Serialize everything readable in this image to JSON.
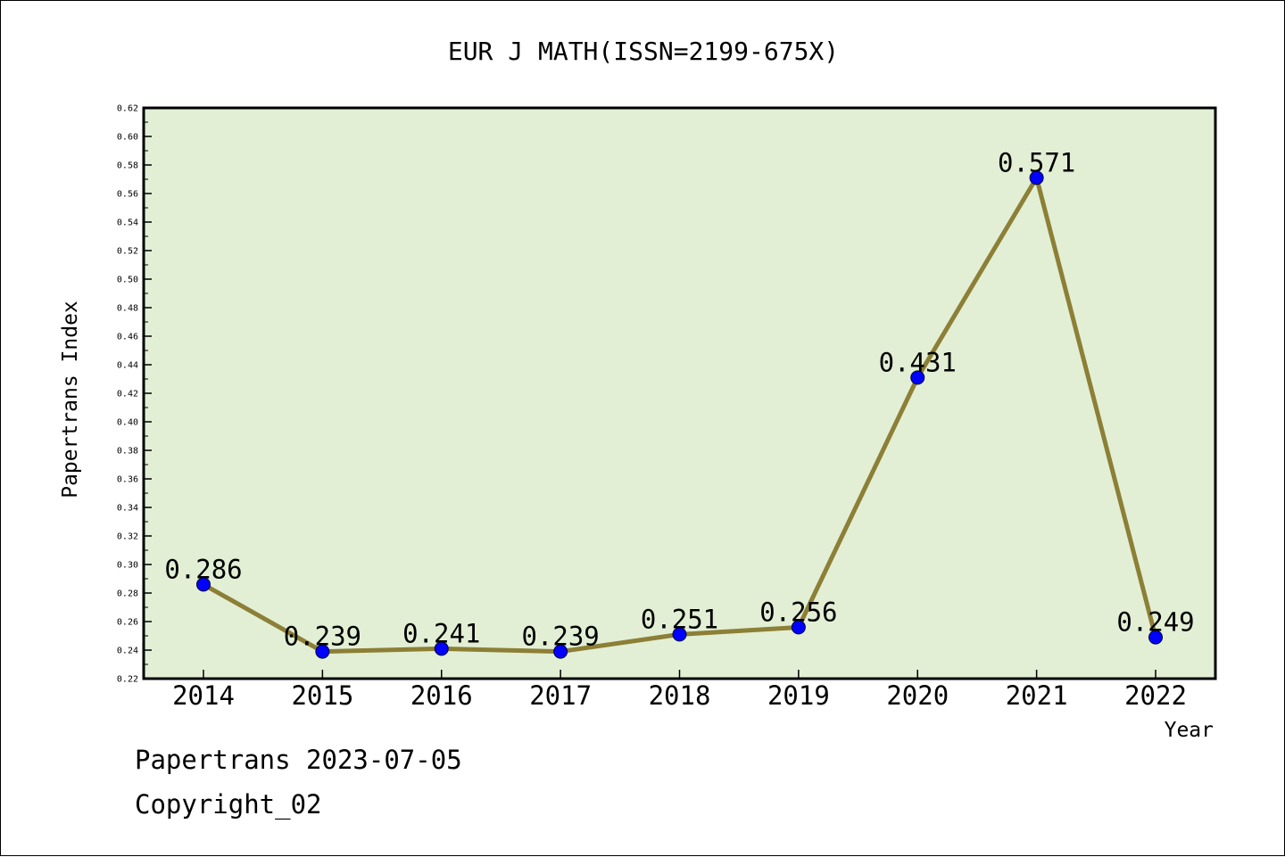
{
  "chart_data": {
    "type": "line",
    "title": "EUR J MATH(ISSN=2199-675X)",
    "xlabel": "Year",
    "ylabel": "Papertrans Index",
    "categories": [
      "2014",
      "2015",
      "2016",
      "2017",
      "2018",
      "2019",
      "2020",
      "2021",
      "2022"
    ],
    "series": [
      {
        "values": [
          0.286,
          0.239,
          0.241,
          0.239,
          0.251,
          0.256,
          0.431,
          0.571,
          0.249
        ],
        "labels": [
          "0.286",
          "0.239",
          "0.241",
          "0.239",
          "0.251",
          "0.256",
          "0.431",
          "0.571",
          "0.249"
        ]
      }
    ],
    "ylim": [
      0.22,
      0.62
    ],
    "yticks": [
      "0.22",
      "0.24",
      "0.26",
      "0.28",
      "0.30",
      "0.32",
      "0.34",
      "0.36",
      "0.38",
      "0.40",
      "0.42",
      "0.44",
      "0.46",
      "0.48",
      "0.50",
      "0.52",
      "0.54",
      "0.56",
      "0.58",
      "0.60",
      "0.62"
    ],
    "grid": false,
    "legend": "none",
    "colors": {
      "plot_background": "#e2efd5",
      "line": "#8c7f36",
      "marker": "#0000ff"
    }
  },
  "footer": {
    "line1": "Papertrans 2023-07-05",
    "line2": "Copyright_02"
  }
}
